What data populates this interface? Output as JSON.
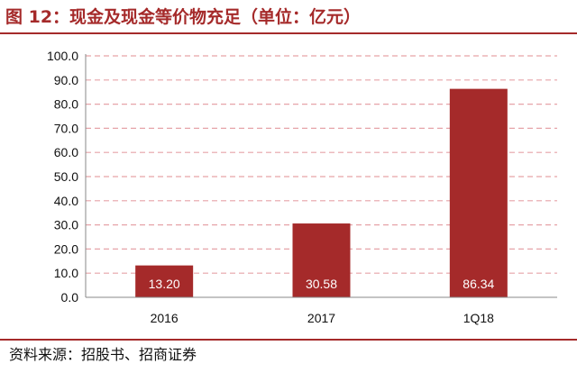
{
  "header": {
    "title": "图 12：现金及现金等价物充足（单位：亿元）"
  },
  "footer": {
    "source": "资料来源：招股书、招商证券"
  },
  "colors": {
    "accent": "#a52a2a",
    "bar": "#a52a2a",
    "grid": "#e6a3a8",
    "axis": "#888888"
  },
  "chart_data": {
    "type": "bar",
    "title": "图 12：现金及现金等价物充足（单位：亿元）",
    "xlabel": "",
    "ylabel": "",
    "categories": [
      "2016",
      "2017",
      "1Q18"
    ],
    "values": [
      13.2,
      30.58,
      86.34
    ],
    "value_labels": [
      "13.20",
      "30.58",
      "86.34"
    ],
    "yticks": [
      "0.0",
      "10.0",
      "20.0",
      "30.0",
      "40.0",
      "50.0",
      "60.0",
      "70.0",
      "80.0",
      "90.0",
      "100.0"
    ],
    "ylim": [
      0,
      100
    ],
    "grid": true,
    "legend": "none"
  }
}
